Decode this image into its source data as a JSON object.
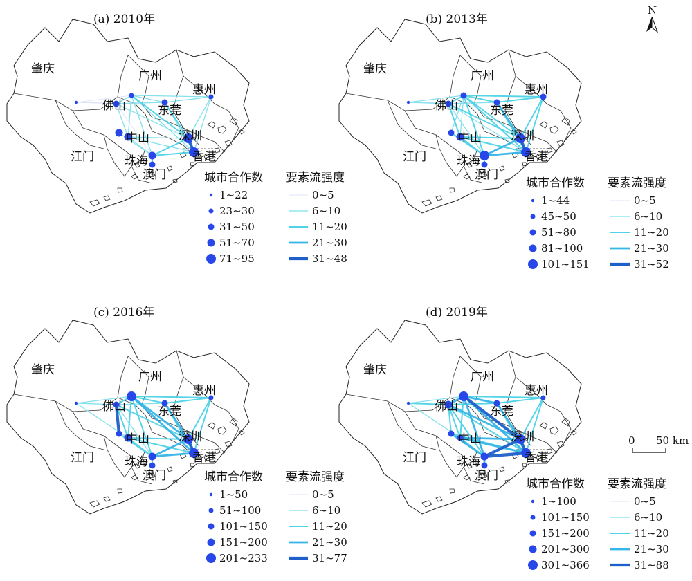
{
  "north_label": "N",
  "scale_bar": {
    "zero": "0",
    "distance": "50 km"
  },
  "legend_headers": {
    "cooperation": "城市合作数",
    "flow": "要素流强度"
  },
  "cities": [
    {
      "id": "zhaoqing",
      "name": "肇庆"
    },
    {
      "id": "guangzhou",
      "name": "广州"
    },
    {
      "id": "huizhou",
      "name": "惠州"
    },
    {
      "id": "foshan",
      "name": "佛山"
    },
    {
      "id": "dongguan",
      "name": "东莞"
    },
    {
      "id": "zhongshan",
      "name": "中山"
    },
    {
      "id": "shenzhen",
      "name": "深圳"
    },
    {
      "id": "jiangmen",
      "name": "江门"
    },
    {
      "id": "zhuhai",
      "name": "珠海"
    },
    {
      "id": "hongkong",
      "name": "香港"
    },
    {
      "id": "macau",
      "name": "澳门"
    }
  ],
  "colors": {
    "node": "#2747e8",
    "flow": [
      "#d6dcf5",
      "#7ee0ec",
      "#4fd3e6",
      "#35b5e6",
      "#1f5fc9"
    ]
  },
  "panels": [
    {
      "title": "(a) 2010年",
      "node_classes": [
        "1~22",
        "23~30",
        "31~50",
        "51~70",
        "71~95"
      ],
      "flow_classes": [
        "0~5",
        "6~10",
        "11~20",
        "21~30",
        "31~48"
      ],
      "node_levels": {
        "zhaoqing": 1,
        "guangzhou": 2,
        "huizhou": 2,
        "foshan": 3,
        "dongguan": 3,
        "zhongshan": 4,
        "shenzhen": 5,
        "jiangmen": 4,
        "zhuhai": 4,
        "hongkong": 5,
        "macau": 3
      },
      "flows": [
        [
          "foshan",
          "guangzhou",
          2
        ],
        [
          "foshan",
          "dongguan",
          2
        ],
        [
          "foshan",
          "zhongshan",
          2
        ],
        [
          "foshan",
          "shenzhen",
          2
        ],
        [
          "foshan",
          "zhuhai",
          1
        ],
        [
          "guangzhou",
          "shenzhen",
          3
        ],
        [
          "guangzhou",
          "dongguan",
          2
        ],
        [
          "guangzhou",
          "huizhou",
          2
        ],
        [
          "guangzhou",
          "hongkong",
          2
        ],
        [
          "guangzhou",
          "zhuhai",
          2
        ],
        [
          "guangzhou",
          "zhongshan",
          2
        ],
        [
          "shenzhen",
          "hongkong",
          5
        ],
        [
          "shenzhen",
          "zhuhai",
          3
        ],
        [
          "shenzhen",
          "dongguan",
          3
        ],
        [
          "shenzhen",
          "huizhou",
          2
        ],
        [
          "shenzhen",
          "zhongshan",
          2
        ],
        [
          "zhuhai",
          "hongkong",
          3
        ],
        [
          "zhuhai",
          "macau",
          3
        ],
        [
          "zhongshan",
          "zhuhai",
          2
        ],
        [
          "zhongshan",
          "hongkong",
          2
        ],
        [
          "jiangmen",
          "zhuhai",
          2
        ],
        [
          "dongguan",
          "hongkong",
          2
        ],
        [
          "huizhou",
          "hongkong",
          2
        ],
        [
          "zhaoqing",
          "guangzhou",
          1
        ],
        [
          "zhaoqing",
          "foshan",
          1
        ],
        [
          "zhaoqing",
          "dongguan",
          1
        ],
        [
          "huizhou",
          "dongguan",
          2
        ]
      ]
    },
    {
      "title": "(b) 2013年",
      "node_classes": [
        "1~44",
        "45~50",
        "51~80",
        "81~100",
        "101~151"
      ],
      "flow_classes": [
        "0~5",
        "6~10",
        "11~20",
        "21~30",
        "31~52"
      ],
      "node_levels": {
        "zhaoqing": 1,
        "guangzhou": 3,
        "huizhou": 3,
        "foshan": 3,
        "dongguan": 3,
        "zhongshan": 4,
        "shenzhen": 5,
        "jiangmen": 3,
        "zhuhai": 5,
        "hongkong": 5,
        "macau": 3
      },
      "flows": [
        [
          "foshan",
          "guangzhou",
          3
        ],
        [
          "foshan",
          "dongguan",
          2
        ],
        [
          "foshan",
          "zhongshan",
          3
        ],
        [
          "foshan",
          "shenzhen",
          3
        ],
        [
          "foshan",
          "zhuhai",
          2
        ],
        [
          "foshan",
          "hongkong",
          2
        ],
        [
          "guangzhou",
          "shenzhen",
          3
        ],
        [
          "guangzhou",
          "dongguan",
          3
        ],
        [
          "guangzhou",
          "huizhou",
          3
        ],
        [
          "guangzhou",
          "hongkong",
          3
        ],
        [
          "guangzhou",
          "zhuhai",
          3
        ],
        [
          "guangzhou",
          "zhongshan",
          2
        ],
        [
          "shenzhen",
          "hongkong",
          5
        ],
        [
          "shenzhen",
          "zhuhai",
          4
        ],
        [
          "shenzhen",
          "dongguan",
          4
        ],
        [
          "shenzhen",
          "huizhou",
          3
        ],
        [
          "shenzhen",
          "zhongshan",
          3
        ],
        [
          "zhuhai",
          "hongkong",
          4
        ],
        [
          "zhuhai",
          "macau",
          3
        ],
        [
          "zhongshan",
          "zhuhai",
          3
        ],
        [
          "zhongshan",
          "hongkong",
          3
        ],
        [
          "jiangmen",
          "zhuhai",
          3
        ],
        [
          "jiangmen",
          "guangzhou",
          2
        ],
        [
          "dongguan",
          "hongkong",
          3
        ],
        [
          "huizhou",
          "hongkong",
          3
        ],
        [
          "zhaoqing",
          "guangzhou",
          2
        ],
        [
          "zhaoqing",
          "foshan",
          2
        ],
        [
          "zhaoqing",
          "dongguan",
          1
        ],
        [
          "huizhou",
          "dongguan",
          3
        ]
      ]
    },
    {
      "title": "(c) 2016年",
      "node_classes": [
        "1~50",
        "51~100",
        "101~150",
        "151~200",
        "201~233"
      ],
      "flow_classes": [
        "0~5",
        "6~10",
        "11~20",
        "21~30",
        "31~77"
      ],
      "node_levels": {
        "zhaoqing": 1,
        "guangzhou": 5,
        "huizhou": 2,
        "foshan": 3,
        "dongguan": 3,
        "zhongshan": 4,
        "shenzhen": 5,
        "jiangmen": 3,
        "zhuhai": 4,
        "hongkong": 5,
        "macau": 3
      },
      "flows": [
        [
          "foshan",
          "guangzhou",
          3
        ],
        [
          "foshan",
          "dongguan",
          2
        ],
        [
          "foshan",
          "zhongshan",
          3
        ],
        [
          "foshan",
          "shenzhen",
          3
        ],
        [
          "foshan",
          "zhuhai",
          2
        ],
        [
          "foshan",
          "jiangmen",
          5
        ],
        [
          "guangzhou",
          "shenzhen",
          4
        ],
        [
          "guangzhou",
          "dongguan",
          3
        ],
        [
          "guangzhou",
          "huizhou",
          3
        ],
        [
          "guangzhou",
          "hongkong",
          4
        ],
        [
          "guangzhou",
          "zhuhai",
          3
        ],
        [
          "guangzhou",
          "zhongshan",
          3
        ],
        [
          "shenzhen",
          "hongkong",
          5
        ],
        [
          "shenzhen",
          "zhuhai",
          4
        ],
        [
          "shenzhen",
          "dongguan",
          4
        ],
        [
          "shenzhen",
          "huizhou",
          3
        ],
        [
          "shenzhen",
          "zhongshan",
          3
        ],
        [
          "zhuhai",
          "hongkong",
          4
        ],
        [
          "zhuhai",
          "macau",
          3
        ],
        [
          "zhongshan",
          "zhuhai",
          3
        ],
        [
          "zhongshan",
          "hongkong",
          3
        ],
        [
          "jiangmen",
          "zhuhai",
          3
        ],
        [
          "dongguan",
          "hongkong",
          3
        ],
        [
          "huizhou",
          "hongkong",
          3
        ],
        [
          "zhaoqing",
          "guangzhou",
          2
        ],
        [
          "zhaoqing",
          "foshan",
          2
        ],
        [
          "zhaoqing",
          "zhongshan",
          2
        ],
        [
          "huizhou",
          "dongguan",
          3
        ]
      ]
    },
    {
      "title": "(d) 2019年",
      "node_classes": [
        "1~100",
        "101~150",
        "151~200",
        "201~300",
        "301~366"
      ],
      "flow_classes": [
        "0~5",
        "6~10",
        "11~20",
        "21~30",
        "31~88"
      ],
      "node_levels": {
        "zhaoqing": 1,
        "guangzhou": 5,
        "huizhou": 2,
        "foshan": 4,
        "dongguan": 3,
        "zhongshan": 3,
        "shenzhen": 5,
        "jiangmen": 3,
        "zhuhai": 4,
        "hongkong": 5,
        "macau": 3
      },
      "flows": [
        [
          "foshan",
          "guangzhou",
          4
        ],
        [
          "foshan",
          "dongguan",
          3
        ],
        [
          "foshan",
          "zhongshan",
          3
        ],
        [
          "foshan",
          "shenzhen",
          4
        ],
        [
          "foshan",
          "zhuhai",
          3
        ],
        [
          "foshan",
          "hongkong",
          3
        ],
        [
          "foshan",
          "jiangmen",
          3
        ],
        [
          "guangzhou",
          "shenzhen",
          5
        ],
        [
          "guangzhou",
          "dongguan",
          4
        ],
        [
          "guangzhou",
          "huizhou",
          3
        ],
        [
          "guangzhou",
          "hongkong",
          4
        ],
        [
          "guangzhou",
          "zhuhai",
          4
        ],
        [
          "guangzhou",
          "zhongshan",
          3
        ],
        [
          "shenzhen",
          "hongkong",
          5
        ],
        [
          "shenzhen",
          "zhuhai",
          5
        ],
        [
          "shenzhen",
          "dongguan",
          4
        ],
        [
          "shenzhen",
          "huizhou",
          3
        ],
        [
          "shenzhen",
          "zhongshan",
          4
        ],
        [
          "zhuhai",
          "hongkong",
          5
        ],
        [
          "zhuhai",
          "macau",
          4
        ],
        [
          "zhongshan",
          "zhuhai",
          3
        ],
        [
          "zhongshan",
          "hongkong",
          4
        ],
        [
          "jiangmen",
          "zhuhai",
          4
        ],
        [
          "jiangmen",
          "hongkong",
          3
        ],
        [
          "dongguan",
          "hongkong",
          3
        ],
        [
          "huizhou",
          "hongkong",
          3
        ],
        [
          "zhaoqing",
          "guangzhou",
          2
        ],
        [
          "zhaoqing",
          "foshan",
          3
        ],
        [
          "zhaoqing",
          "zhongshan",
          2
        ],
        [
          "huizhou",
          "dongguan",
          3
        ]
      ]
    }
  ]
}
